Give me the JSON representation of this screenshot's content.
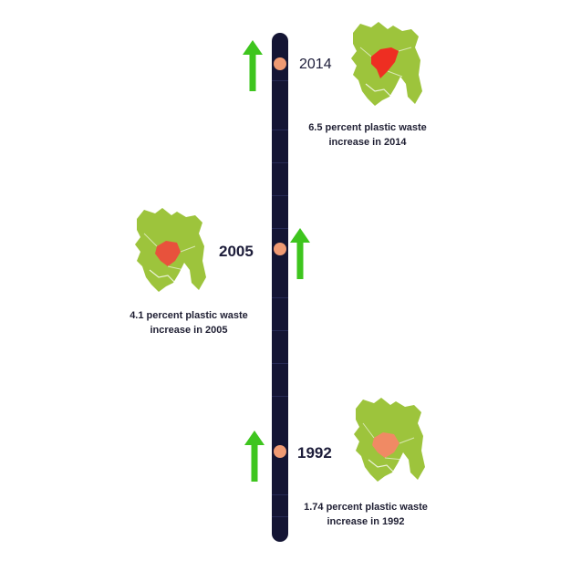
{
  "milestones": [
    {
      "year": "2014",
      "caption_line1": "6.5 percent plastic waste",
      "caption_line2": "increase in 2014",
      "highlight_color": "#ee2e22"
    },
    {
      "year": "2005",
      "caption_line1": "4.1 percent plastic waste",
      "caption_line2": "increase in 2005",
      "highlight_color": "#e8523c"
    },
    {
      "year": "1992",
      "caption_line1": "1.74 percent plastic waste",
      "caption_line2": "increase in 1992",
      "highlight_color": "#f08a64"
    }
  ],
  "colors": {
    "timeline": "#141534",
    "dot": "#ef9a73",
    "arrow": "#3ec51e",
    "map_base": "#9dc43c"
  },
  "icons": {
    "arrow": "up-arrow-icon",
    "map": "bangladesh-map-icon"
  }
}
